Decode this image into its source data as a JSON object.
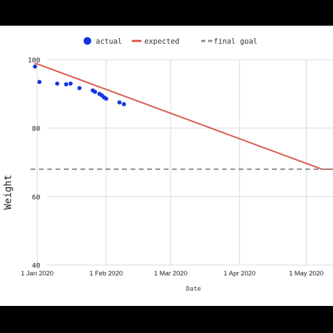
{
  "chart_data": {
    "type": "scatter",
    "title": "",
    "xlabel": "Date",
    "ylabel": "Weight",
    "ylim": [
      40,
      100
    ],
    "y_ticks": [
      40,
      60,
      80,
      100
    ],
    "xlim": [
      "2019-12-29",
      "2020-05-13"
    ],
    "x_ticks": [
      {
        "date": "2020-01-01",
        "label": "1 Jan 2020"
      },
      {
        "date": "2020-02-01",
        "label": "1 Feb 2020"
      },
      {
        "date": "2020-03-01",
        "label": "1 Mar 2020"
      },
      {
        "date": "2020-04-01",
        "label": "1 Apr 2020"
      },
      {
        "date": "2020-05-01",
        "label": "1 May 2020"
      }
    ],
    "grid": true,
    "legend_position": "top",
    "series": [
      {
        "name": "actual",
        "kind": "points",
        "color": "#1436e0",
        "points": [
          {
            "x": "2019-12-31",
            "y": 98.0
          },
          {
            "x": "2020-01-02",
            "y": 93.5
          },
          {
            "x": "2020-01-10",
            "y": 93.0
          },
          {
            "x": "2020-01-14",
            "y": 92.8
          },
          {
            "x": "2020-01-16",
            "y": 93.0
          },
          {
            "x": "2020-01-20",
            "y": 91.7
          },
          {
            "x": "2020-01-26",
            "y": 91.0
          },
          {
            "x": "2020-01-27",
            "y": 90.6
          },
          {
            "x": "2020-01-29",
            "y": 90.0
          },
          {
            "x": "2020-01-30",
            "y": 89.6
          },
          {
            "x": "2020-01-31",
            "y": 89.0
          },
          {
            "x": "2020-02-01",
            "y": 88.6
          },
          {
            "x": "2020-02-07",
            "y": 87.5
          },
          {
            "x": "2020-02-09",
            "y": 87.0
          }
        ]
      },
      {
        "name": "expected",
        "kind": "line",
        "color": "#d9574a",
        "points": [
          {
            "x": "2019-12-31",
            "y": 99.0
          },
          {
            "x": "2020-05-08",
            "y": 68.0
          },
          {
            "x": "2020-05-13",
            "y": 68.0
          }
        ]
      },
      {
        "name": "final goal",
        "kind": "dashed",
        "color": "#8c8c8c",
        "points": [
          {
            "x": "2019-12-29",
            "y": 68.0
          },
          {
            "x": "2020-05-13",
            "y": 68.0
          }
        ]
      }
    ]
  }
}
